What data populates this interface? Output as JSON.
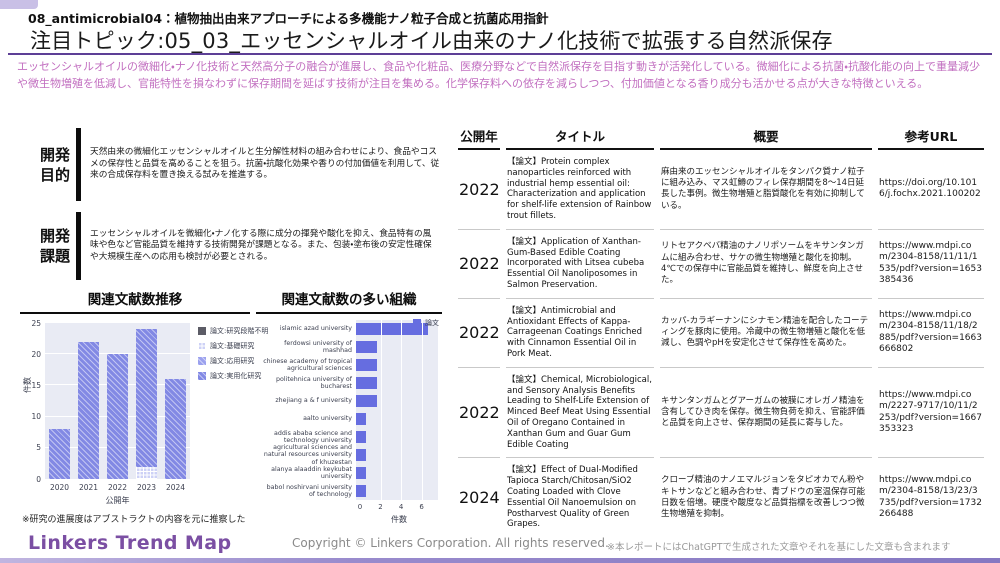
{
  "page": {
    "kicker": "08_antimicrobial04：植物抽出由来アプローチによる多機能ナノ粒子合成と抗菌応用指針",
    "title": "注目トピック:05_03_エッセンシャルオイル由来のナノ化技術で拡張する自然派保存",
    "intro": "エッセンシャルオイルの微細化・ナノ化技術と天然高分子の融合が進展し、食品や化粧品、医療分野などで自然派保存を目指す動きが活発化している。微細化による抗菌・抗酸化能の向上で重量減少や微生物増殖を低減し、官能特性を損なわずに保存期間を延ばす技術が注目を集める。化学保存料への依存を減らしつつ、付加価値となる香り成分も活かせる点が大きな特徴といえる。"
  },
  "sections": {
    "purpose": {
      "label": "開発\n目的",
      "text": "天然由来の微細化エッセンシャルオイルと生分解性材料の組み合わせにより、食品やコスメの保存性と品質を高めることを狙う。抗菌・抗酸化効果や香りの付加価値を利用して、従来の合成保存料を置き換える試みを推進する。"
    },
    "issue": {
      "label": "開発\n課題",
      "text": "エッセンシャルオイルを微細化・ナノ化する際に成分の揮発や酸化を抑え、食品特有の風味や色など官能品質を維持する技術開発が課題となる。また、包装・塗布後の安定性確保や大規模生産への応用も検討が必要とされる。"
    }
  },
  "chart_data": [
    {
      "type": "bar",
      "stacked": true,
      "title": "関連文献数推移",
      "categories": [
        "2020",
        "2021",
        "2022",
        "2023",
        "2024"
      ],
      "series": [
        {
          "name": "論文:研究段階不明",
          "color": "#5c5c66",
          "pattern": "none",
          "values": [
            0,
            0,
            0,
            0,
            0
          ]
        },
        {
          "name": "論文:基礎研究",
          "color": "#cdd1f6",
          "pattern": "grid",
          "values": [
            0,
            0,
            0,
            2,
            0
          ]
        },
        {
          "name": "論文:応用研究",
          "color": "#9ba1ee",
          "pattern": "diag",
          "values": [
            0,
            0,
            0,
            0,
            0
          ]
        },
        {
          "name": "論文:実用化研究",
          "color": "#8289e4",
          "pattern": "diag",
          "values": [
            8,
            22,
            20,
            22,
            16
          ]
        }
      ],
      "xlabel": "公開年",
      "ylabel": "件数",
      "ylim": [
        0,
        25
      ],
      "yticks": [
        0,
        5,
        10,
        15,
        20,
        25
      ],
      "legend_position": "right",
      "grid": true,
      "plot_bg": "#e9ebf4"
    },
    {
      "type": "bar-horizontal",
      "title": "関連文献数の多い組織",
      "categories": [
        "islamic azad university",
        "ferdowsi university of mashhad",
        "chinese academy of tropical agricultural sciences",
        "politehnica university of bucharest",
        "zhejiang a & f university",
        "aalto university",
        "addis ababa science and technology university",
        "agricultural sciences and natural resources university of khuzestan",
        "alanya alaaddin keykubat university",
        "babol noshirvani university of technology"
      ],
      "values": [
        7,
        2,
        2,
        2,
        2,
        1,
        1,
        1,
        1,
        1
      ],
      "series_name": "論文",
      "color": "#666de0",
      "xlabel": "件数",
      "xlim": [
        0,
        7.6
      ],
      "xticks": [
        0,
        2,
        4,
        6
      ],
      "legend_position": "top-right",
      "grid": true,
      "plot_bg": "#e9ebf4"
    }
  ],
  "charts_note": "※研究の進展度はアブストラクトの内容を元に推察した",
  "table": {
    "headers": [
      "公開年",
      "タイトル",
      "概要",
      "参考URL"
    ],
    "rows": [
      {
        "year": "2022",
        "title": "【論文】Protein complex nanoparticles reinforced with industrial hemp essential oil: Characterization and application for shelf-life extension of Rainbow trout fillets.",
        "summary": "麻由来のエッセンシャルオイルをタンパク質ナノ粒子に組み込み、マス虹鱒のフィレ保存期間を8～14日延長した事例。微生物増殖と脂質酸化を有効に抑制している。",
        "url": "https://doi.org/10.1016/j.fochx.2021.100202"
      },
      {
        "year": "2022",
        "title": "【論文】Application of Xanthan-Gum-Based Edible Coating Incorporated with Litsea cubeba Essential Oil Nanoliposomes in Salmon Preservation.",
        "summary": "リトセアクベバ精油のナノリポソームをキサンタンガムに組み合わせ、サケの微生物増殖と酸化を抑制。4℃での保存中に官能品質を維持し、鮮度を向上させた。",
        "url": "https://www.mdpi.com/2304-8158/11/11/1535/pdf?version=1653385436"
      },
      {
        "year": "2022",
        "title": "【論文】Antimicrobial and Antioxidant Effects of Kappa-Carrageenan Coatings Enriched with Cinnamon Essential Oil in Pork Meat.",
        "summary": "カッパ-カラギーナンにシナモン精油を配合したコーティングを豚肉に使用。冷蔵中の微生物増殖と酸化を低減し、色調やpHを安定化させて保存性を高めた。",
        "url": "https://www.mdpi.com/2304-8158/11/18/2885/pdf?version=1663666802"
      },
      {
        "year": "2022",
        "title": "【論文】Chemical, Microbiological, and Sensory Analysis Benefits Leading to Shelf-Life Extension of Minced Beef Meat Using Essential Oil of Oregano Contained in Xanthan Gum and Guar Gum Edible Coating",
        "summary": "キサンタンガムとグアーガムの被膜にオレガノ精油を含有してひき肉を保存。微生物負荷を抑え、官能評価と品質を向上させ、保存期間の延長に寄与した。",
        "url": "https://www.mdpi.com/2227-9717/10/11/2253/pdf?version=1667353323"
      },
      {
        "year": "2024",
        "title": "【論文】Effect of Dual-Modified Tapioca Starch/Chitosan/SiO2 Coating Loaded with Clove Essential Oil Nanoemulsion on Postharvest Quality of Green Grapes.",
        "summary": "クローブ精油のナノエマルジョンをタピオカでん粉やキトサンなどと組み合わせ、青ブドウの室温保存可能日数を倍増。硬度や酸度など品質指標を改善しつつ微生物増殖を抑制。",
        "url": "https://www.mdpi.com/2304-8158/13/23/3735/pdf?version=1732266488"
      }
    ]
  },
  "footer": {
    "logo": "Linkers Trend Map",
    "copyright": "Copyright © Linkers Corporation. All rights reserved.",
    "ai_note": "※本レポートにはChatGPTで生成された文章やそれを基にした文章も含まれます"
  },
  "colors": {
    "accent_purple": "#5d3f96",
    "intro_pink": "#c26fc0",
    "bar_periwinkle": "#8289e4",
    "bar_light": "#cdd1f6",
    "plot_background": "#e9ebf4",
    "logo_purple": "#7b4fa3"
  }
}
